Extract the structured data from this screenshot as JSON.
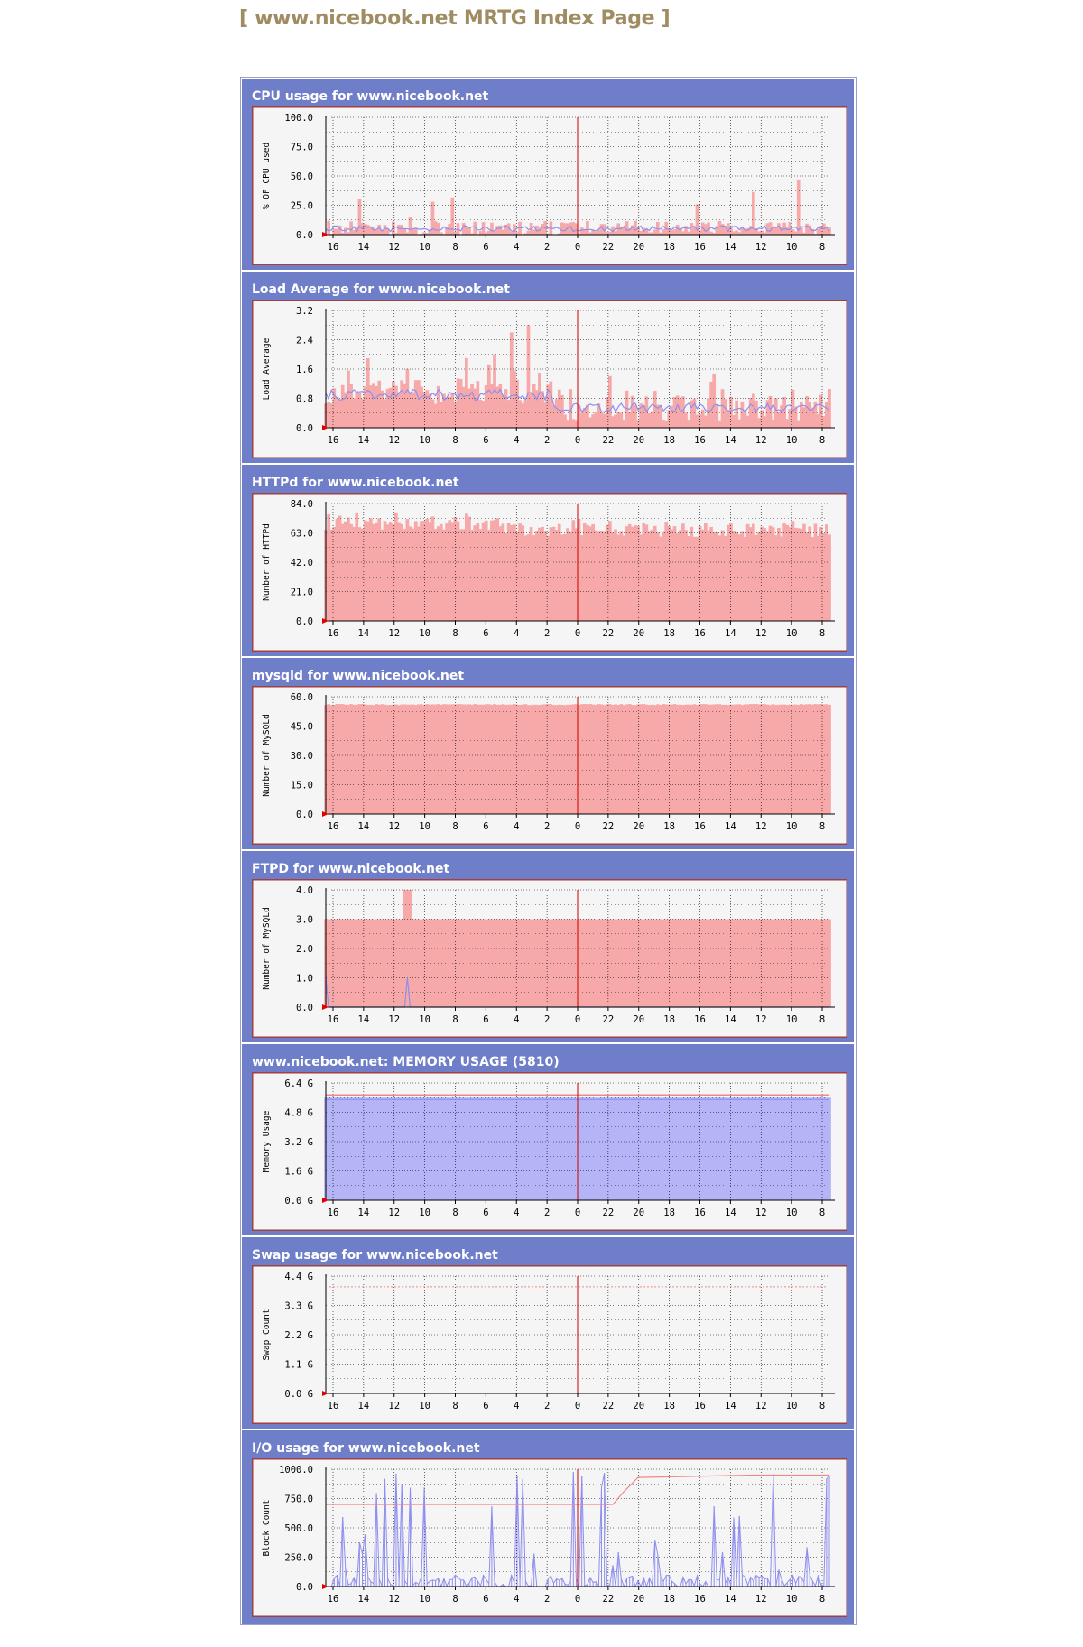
{
  "page": {
    "title": "[ www.nicebook.net MRTG Index Page ]"
  },
  "x_ticks": [
    "16",
    "14",
    "12",
    "10",
    "8",
    "6",
    "4",
    "2",
    "0",
    "22",
    "20",
    "18",
    "16",
    "14",
    "12",
    "10",
    "8"
  ],
  "colors": {
    "in_fill": "#f7a9a9",
    "in_line": "#ef8888",
    "out_line": "#8f8ff0",
    "out_fill": "#b4b4f7",
    "midnight_rule": "#cc0000",
    "grid": "#000000"
  },
  "chart_data": [
    {
      "type": "area",
      "title": "CPU usage for www.nicebook.net",
      "ylabel": "% OF CPU used",
      "yticks": [
        "100.0",
        "75.0",
        "50.0",
        "25.0",
        "0.0"
      ],
      "ylim": [
        0,
        100
      ],
      "pattern": "cpu",
      "base": 6,
      "var": 6,
      "spikes": 12,
      "spike_max": 40,
      "out_base": 5
    },
    {
      "type": "area",
      "title": "Load Average for www.nicebook.net",
      "ylabel": "Load Average",
      "yticks": [
        "3.2",
        "2.4",
        "1.6",
        "0.8",
        "0.0"
      ],
      "ylim": [
        0,
        3.2
      ],
      "pattern": "load",
      "base": 0.75,
      "var": 0.35,
      "spikes": 10,
      "spike_max": 2.8,
      "out_base": 0.8
    },
    {
      "type": "area",
      "title": "HTTPd for www.nicebook.net",
      "ylabel": "Number of HTTPd",
      "yticks": [
        "84.0",
        "63.0",
        "42.0",
        "21.0",
        "0.0"
      ],
      "ylim": [
        0,
        84
      ],
      "pattern": "httpd",
      "base": 64,
      "var": 5,
      "spikes": 0,
      "spike_max": 80,
      "out_base": 0
    },
    {
      "type": "area",
      "title": "mysqld for www.nicebook.net",
      "ylabel": "Number of MySQLd",
      "yticks": [
        "60.0",
        "45.0",
        "30.0",
        "15.0",
        "0.0"
      ],
      "ylim": [
        0,
        60
      ],
      "pattern": "flat",
      "base": 56,
      "var": 0.3,
      "spikes": 0,
      "spike_max": 57,
      "out_base": 0
    },
    {
      "type": "area",
      "title": "FTPD for www.nicebook.net",
      "ylabel": "Number of MySQLd",
      "yticks": [
        "4.0",
        "3.0",
        "2.0",
        "1.0",
        "0.0"
      ],
      "ylim": [
        0,
        4
      ],
      "pattern": "ftpd",
      "base": 3,
      "var": 0,
      "spikes": 0,
      "spike_max": 4,
      "out_base": 0
    },
    {
      "type": "area",
      "title": "www.nicebook.net: MEMORY USAGE (5810)",
      "ylabel": "Memory Usage",
      "yticks": [
        "6.4 G",
        "4.8 G",
        "3.2 G",
        "1.6 G",
        "0.0 G"
      ],
      "ylim": [
        0,
        6.4
      ],
      "pattern": "memory",
      "base": 5.5,
      "var": 0,
      "spikes": 0,
      "spike_max": 5.7,
      "out_base": 5.5
    },
    {
      "type": "line",
      "title": "Swap usage for www.nicebook.net",
      "ylabel": "Swap Count",
      "yticks": [
        "4.4 G",
        "3.3 G",
        "2.2 G",
        "1.1 G",
        "0.0 G"
      ],
      "ylim": [
        0,
        4.4
      ],
      "pattern": "swap",
      "base": 0,
      "var": 0,
      "spikes": 0,
      "spike_max": 4,
      "out_base": 0
    },
    {
      "type": "area",
      "title": "I/O usage for www.nicebook.net",
      "ylabel": "Block Count",
      "yticks": [
        "1000.0",
        "750.0",
        "500.0",
        "250.0",
        "0.0"
      ],
      "ylim": [
        0,
        1000
      ],
      "pattern": "io",
      "base": 40,
      "var": 60,
      "spikes": 40,
      "spike_max": 950,
      "out_base": 0
    }
  ]
}
